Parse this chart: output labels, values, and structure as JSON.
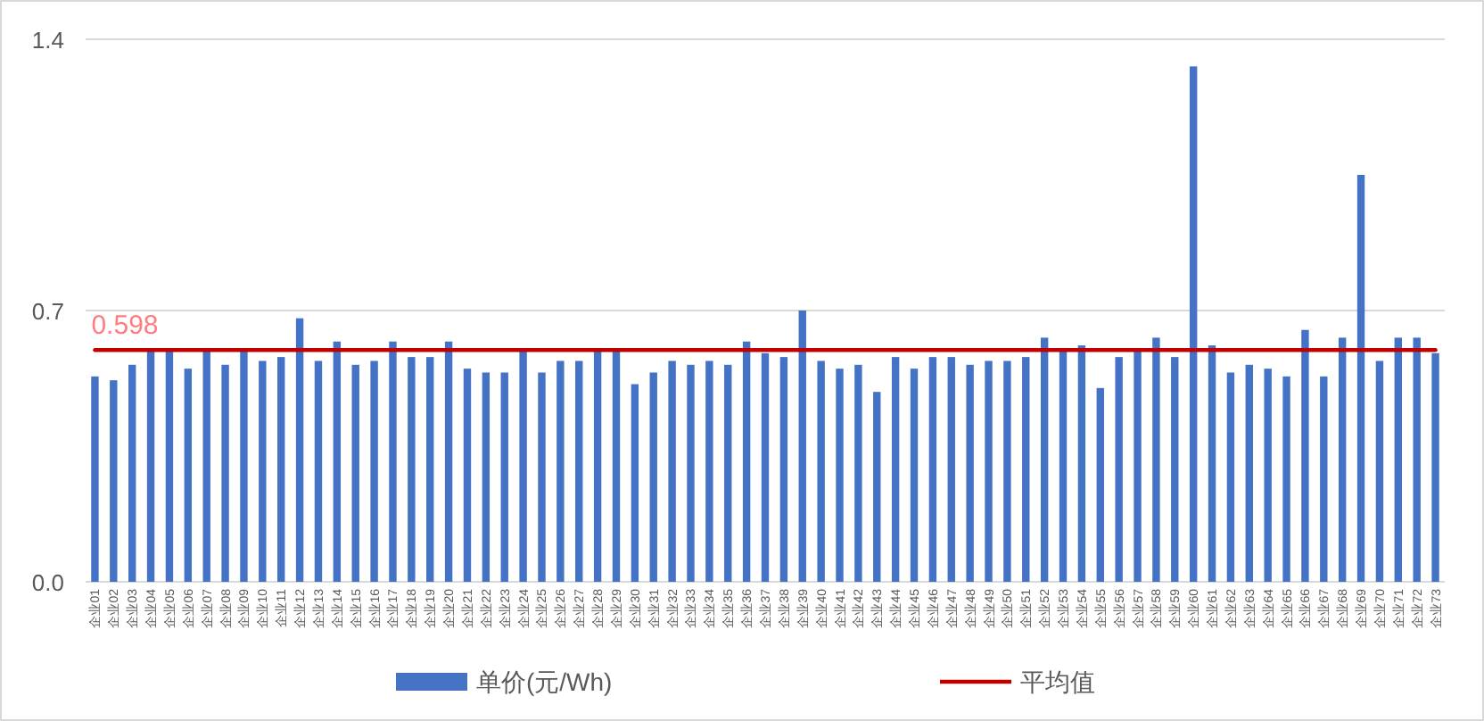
{
  "chart_data": {
    "type": "bar",
    "categories": [
      "企业01",
      "企业02",
      "企业03",
      "企业04",
      "企业05",
      "企业06",
      "企业07",
      "企业08",
      "企业09",
      "企业10",
      "企业11",
      "企业12",
      "企业13",
      "企业14",
      "企业15",
      "企业16",
      "企业17",
      "企业18",
      "企业19",
      "企业20",
      "企业21",
      "企业22",
      "企业23",
      "企业24",
      "企业25",
      "企业26",
      "企业27",
      "企业28",
      "企业29",
      "企业30",
      "企业31",
      "企业32",
      "企业33",
      "企业34",
      "企业35",
      "企业36",
      "企业37",
      "企业38",
      "企业39",
      "企业40",
      "企业41",
      "企业42",
      "企业43",
      "企业44",
      "企业45",
      "企业46",
      "企业47",
      "企业48",
      "企业49",
      "企业50",
      "企业51",
      "企业52",
      "企业53",
      "企业54",
      "企业55",
      "企业56",
      "企业57",
      "企业58",
      "企业59",
      "企业60",
      "企业61",
      "企业62",
      "企业63",
      "企业64",
      "企业65",
      "企业66",
      "企业67",
      "企业68",
      "企业69",
      "企业70",
      "企业71",
      "企业72",
      "企业73"
    ],
    "series": [
      {
        "name": "单价(元/Wh)",
        "color": "#4472c4",
        "values": [
          0.53,
          0.52,
          0.56,
          0.6,
          0.6,
          0.55,
          0.6,
          0.56,
          0.6,
          0.57,
          0.58,
          0.68,
          0.57,
          0.62,
          0.56,
          0.57,
          0.62,
          0.58,
          0.58,
          0.62,
          0.55,
          0.54,
          0.54,
          0.6,
          0.54,
          0.57,
          0.57,
          0.6,
          0.6,
          0.51,
          0.54,
          0.57,
          0.56,
          0.57,
          0.56,
          0.62,
          0.59,
          0.58,
          0.7,
          0.57,
          0.55,
          0.56,
          0.49,
          0.58,
          0.55,
          0.58,
          0.58,
          0.56,
          0.57,
          0.57,
          0.58,
          0.63,
          0.6,
          0.61,
          0.5,
          0.58,
          0.6,
          0.63,
          0.58,
          1.33,
          0.61,
          0.54,
          0.56,
          0.55,
          0.53,
          0.65,
          0.53,
          0.63,
          1.05,
          0.57,
          0.63,
          0.63,
          0.59
        ]
      },
      {
        "name": "平均值",
        "type": "line",
        "color": "#c00000",
        "values": [
          0.598,
          0.598,
          0.598,
          0.598,
          0.598,
          0.598,
          0.598,
          0.598,
          0.598,
          0.598,
          0.598,
          0.598,
          0.598,
          0.598,
          0.598,
          0.598,
          0.598,
          0.598,
          0.598,
          0.598,
          0.598,
          0.598,
          0.598,
          0.598,
          0.598,
          0.598,
          0.598,
          0.598,
          0.598,
          0.598,
          0.598,
          0.598,
          0.598,
          0.598,
          0.598,
          0.598,
          0.598,
          0.598,
          0.598,
          0.598,
          0.598,
          0.598,
          0.598,
          0.598,
          0.598,
          0.598,
          0.598,
          0.598,
          0.598,
          0.598,
          0.598,
          0.598,
          0.598,
          0.598,
          0.598,
          0.598,
          0.598,
          0.598,
          0.598,
          0.598,
          0.598,
          0.598,
          0.598,
          0.598,
          0.598,
          0.598,
          0.598,
          0.598,
          0.598,
          0.598,
          0.598,
          0.598,
          0.598
        ],
        "value_labels": [
          "0.598",
          null,
          null,
          null,
          null,
          null,
          null,
          null,
          null,
          null,
          null,
          null,
          null,
          null,
          null,
          null,
          null,
          null,
          null,
          null,
          null,
          null,
          null,
          null,
          null,
          null,
          null,
          null,
          null,
          null,
          null,
          null,
          null,
          null,
          null,
          null,
          null,
          null,
          null,
          null,
          null,
          null,
          null,
          null,
          null,
          null,
          null,
          null,
          null,
          null,
          null,
          null,
          null,
          null,
          null,
          null,
          null,
          null,
          null,
          null,
          null,
          null,
          null,
          null,
          null,
          null,
          null,
          null,
          null,
          null,
          null,
          null,
          null
        ]
      }
    ],
    "ylim": [
      0,
      1.4
    ],
    "yticks": [
      {
        "value": 0,
        "label": "0.0"
      },
      0.7,
      1.4
    ],
    "grid": "y",
    "legend": "bottom"
  }
}
